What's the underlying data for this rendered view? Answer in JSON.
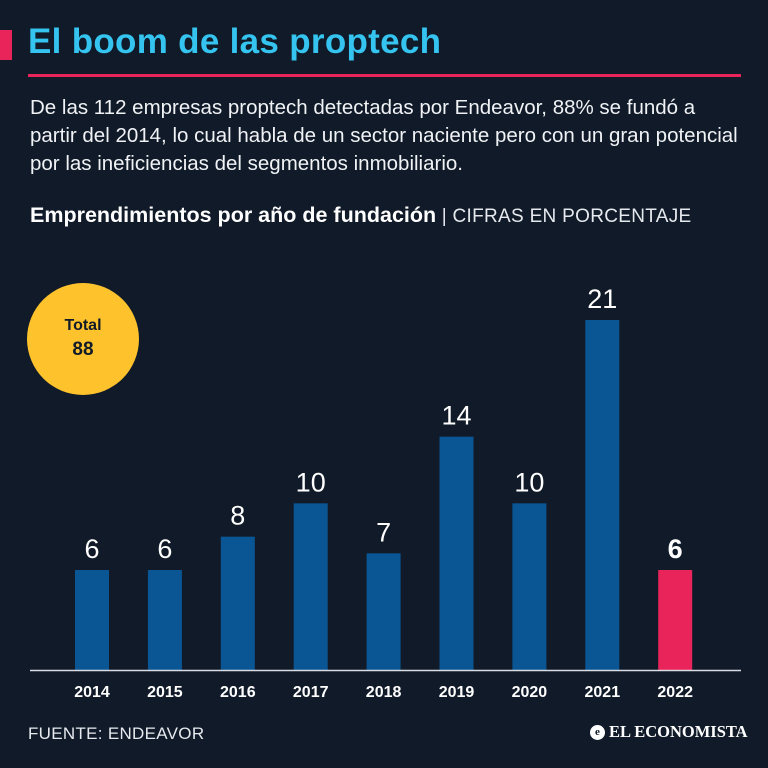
{
  "header": {
    "title": "El boom de las proptech",
    "intro": "De las 112 empresas proptech detectadas por Endeavor, 88% se fundó a partir del 2014, lo cual habla de un sector naciente pero con un gran potencial por las ineficiencias del segmentos inmobiliario.",
    "subtitle_main": "Emprendimientos por año de fundación",
    "subtitle_units": "| CIFRAS EN PORCENTAJE"
  },
  "total": {
    "label": "Total",
    "value": "88"
  },
  "chart_data": {
    "type": "bar",
    "title": "Emprendimientos por año de fundación",
    "units": "CIFRAS EN PORCENTAJE",
    "categories": [
      "2014",
      "2015",
      "2016",
      "2017",
      "2018",
      "2019",
      "2020",
      "2021",
      "2022"
    ],
    "values": [
      6,
      6,
      8,
      10,
      7,
      14,
      10,
      21,
      6
    ],
    "highlight": "2022",
    "xlabel": "",
    "ylabel": "",
    "ylim": [
      0,
      21
    ],
    "grid": false,
    "colors": {
      "bar": "#0a5593",
      "highlight": "#e8245a",
      "axis": "#d9dde3",
      "label": "#ffffff"
    }
  },
  "footer": {
    "source": "FUENTE: ENDEAVOR",
    "logo_mark": "e",
    "logo_text": "EL ECONOMISTA"
  },
  "colors": {
    "background": "#101a28",
    "title": "#35c4f0",
    "accent": "#e8245a",
    "badge": "#fec22c"
  }
}
